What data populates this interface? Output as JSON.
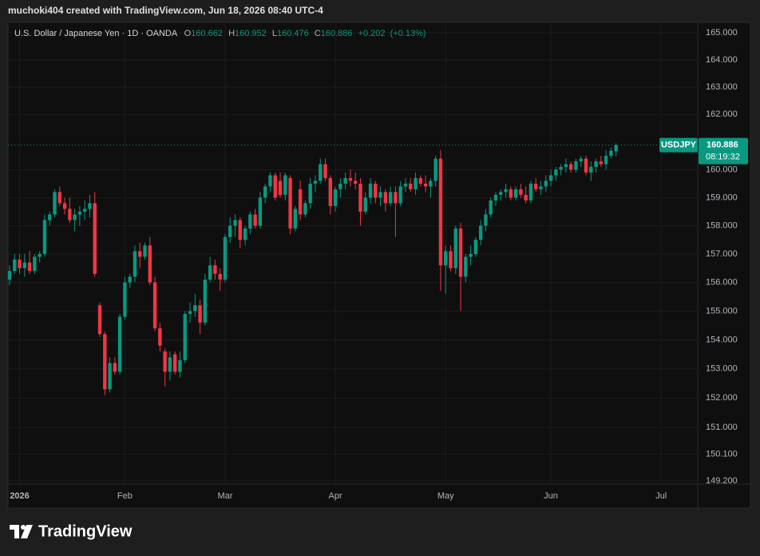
{
  "header": {
    "text": "muchoki404 created with TradingView.com, Jun 18, 2026 08:40 UTC-4"
  },
  "chart_data": {
    "type": "candlestick",
    "title": "U.S. Dollar / Japanese Yen · 1D · OANDA",
    "ohlc_labels": [
      "O",
      "H",
      "L",
      "C"
    ],
    "change": "+0.202",
    "change_percent": "(+0.13%)",
    "symbol": "USDJPY",
    "countdown": "08:19:32",
    "up_color": "#089981",
    "down_color": "#f23645",
    "log_scale": true,
    "grid": true,
    "xlim": [
      -0.32,
      137.3
    ],
    "xticks": [
      {
        "value": 2,
        "label": "2026"
      },
      {
        "value": 23,
        "label": "Feb"
      },
      {
        "value": 43,
        "label": "Mar"
      },
      {
        "value": 65,
        "label": "Apr"
      },
      {
        "value": 87,
        "label": "May"
      },
      {
        "value": 108,
        "label": "Jun"
      },
      {
        "value": 130,
        "label": "Jul"
      }
    ],
    "ylim": [
      149.09,
      165.385
    ],
    "yticks": [
      {
        "value": 165,
        "label": "165.000"
      },
      {
        "value": 164,
        "label": "164.000"
      },
      {
        "value": 163,
        "label": "163.000"
      },
      {
        "value": 162,
        "label": "162.000"
      },
      {
        "value": 160,
        "label": "160.000"
      },
      {
        "value": 159,
        "label": "159.000"
      },
      {
        "value": 158,
        "label": "158.000"
      },
      {
        "value": 157,
        "label": "157.000"
      },
      {
        "value": 156,
        "label": "156.000"
      },
      {
        "value": 155,
        "label": "155.000"
      },
      {
        "value": 154,
        "label": "154.000"
      },
      {
        "value": 153,
        "label": "153.000"
      },
      {
        "value": 152,
        "label": "152.000"
      },
      {
        "value": 151,
        "label": "151.000"
      },
      {
        "value": 150.1,
        "label": "150.100"
      },
      {
        "value": 149.2,
        "label": "149.200"
      }
    ],
    "open": [
      156.1,
      156.4,
      156.8,
      156.5,
      156.7,
      156.4,
      156.9,
      157.0,
      158.2,
      158.4,
      159.2,
      158.8,
      158.6,
      158.2,
      158.4,
      158.5,
      158.6,
      158.8,
      155.2,
      154.2,
      152.3,
      153.2,
      152.9,
      154.8,
      156.0,
      156.2,
      157.1,
      156.9,
      157.3,
      156.0,
      154.4,
      153.6,
      152.9,
      153.5,
      152.9,
      153.3,
      154.9,
      155.0,
      155.2,
      154.6,
      156.1,
      156.6,
      156.3,
      156.1,
      157.6,
      158.0,
      158.2,
      157.5,
      157.9,
      158.4,
      158.0,
      159.0,
      159.4,
      159.8,
      159.6,
      159.1,
      159.7,
      157.9,
      159.3,
      158.4,
      158.8,
      159.5,
      159.6,
      160.2,
      159.7,
      158.7,
      159.3,
      159.5,
      159.7,
      159.6,
      159.5,
      158.5,
      159.0,
      159.5,
      159.0,
      159.2,
      158.8,
      159.2,
      158.8,
      159.4,
      159.5,
      159.3,
      159.7,
      159.5,
      159.4,
      159.6,
      160.4,
      156.6,
      157.1,
      156.5,
      157.9,
      156.2,
      156.9,
      157.0,
      157.5,
      158.0,
      158.4,
      158.9,
      159.1,
      159.2,
      159.3,
      159.0,
      159.3,
      159.1,
      158.9,
      159.5,
      159.3,
      159.4,
      159.6,
      159.8,
      160.0,
      160.1,
      160.2,
      160.0,
      160.3,
      160.4,
      159.9,
      160.1,
      160.3,
      160.2,
      160.5,
      160.662
    ],
    "high": [
      156.6,
      157.0,
      157.0,
      157.0,
      157.1,
      157.0,
      157.1,
      158.4,
      158.5,
      159.3,
      159.4,
      159.0,
      159.0,
      158.6,
      158.7,
      158.9,
      159.1,
      159.2,
      155.3,
      154.3,
      153.4,
      153.4,
      154.9,
      156.2,
      156.3,
      157.3,
      157.4,
      157.4,
      157.6,
      156.2,
      154.6,
      153.7,
      153.6,
      153.6,
      153.6,
      155.0,
      155.3,
      155.6,
      155.4,
      156.3,
      156.9,
      156.8,
      156.5,
      157.7,
      158.3,
      158.4,
      158.3,
      158.0,
      158.5,
      158.6,
      159.2,
      159.5,
      159.9,
      159.9,
      159.9,
      159.9,
      159.8,
      158.7,
      159.6,
      158.9,
      159.7,
      159.8,
      160.4,
      160.4,
      159.8,
      159.4,
      159.7,
      159.9,
      160.0,
      159.9,
      159.7,
      159.2,
      159.7,
      159.6,
      159.4,
      159.3,
      159.4,
      159.4,
      159.6,
      159.7,
      159.7,
      159.9,
      159.8,
      159.8,
      159.7,
      160.5,
      160.7,
      157.3,
      157.3,
      158.0,
      158.1,
      157.0,
      157.3,
      157.6,
      158.2,
      158.6,
      159.0,
      159.2,
      159.3,
      159.5,
      159.4,
      159.4,
      159.5,
      159.4,
      159.6,
      159.7,
      159.6,
      159.8,
      160.0,
      160.1,
      160.2,
      160.4,
      160.3,
      160.4,
      160.5,
      160.5,
      160.3,
      160.4,
      160.5,
      160.7,
      160.8,
      160.952
    ],
    "low": [
      155.9,
      156.3,
      156.3,
      156.2,
      156.3,
      156.3,
      156.7,
      156.9,
      158.0,
      158.3,
      158.7,
      158.4,
      158.1,
      157.8,
      158.0,
      158.2,
      158.3,
      156.2,
      154.1,
      152.1,
      152.2,
      152.8,
      152.8,
      154.7,
      155.8,
      156.0,
      156.5,
      156.8,
      155.9,
      154.3,
      153.6,
      152.4,
      152.6,
      152.8,
      152.7,
      153.2,
      154.6,
      154.8,
      154.2,
      154.5,
      156.0,
      156.1,
      155.7,
      156.0,
      157.4,
      157.6,
      157.2,
      157.3,
      157.7,
      157.9,
      157.9,
      158.8,
      159.2,
      158.9,
      159.0,
      158.9,
      157.7,
      157.8,
      158.2,
      158.3,
      158.6,
      159.2,
      159.5,
      159.6,
      158.4,
      158.5,
      159.0,
      159.3,
      159.4,
      159.3,
      158.0,
      158.4,
      158.8,
      158.8,
      158.7,
      158.5,
      158.7,
      157.6,
      158.7,
      159.2,
      159.2,
      159.1,
      159.4,
      159.2,
      159.0,
      159.4,
      155.7,
      155.6,
      156.4,
      156.3,
      155.0,
      156.0,
      156.6,
      156.9,
      157.3,
      157.8,
      158.3,
      158.7,
      158.9,
      159.0,
      158.9,
      158.9,
      159.0,
      158.8,
      158.8,
      159.2,
      159.1,
      159.2,
      159.4,
      159.6,
      159.8,
      159.9,
      159.9,
      159.9,
      160.1,
      159.8,
      159.6,
      159.9,
      160.1,
      160.0,
      160.4,
      160.476
    ],
    "close": [
      156.4,
      156.8,
      156.5,
      156.7,
      156.4,
      156.9,
      157.0,
      158.2,
      158.4,
      159.2,
      158.8,
      158.6,
      158.2,
      158.4,
      158.5,
      158.6,
      158.8,
      156.3,
      154.2,
      152.3,
      153.2,
      152.9,
      154.8,
      156.0,
      156.2,
      157.1,
      156.9,
      157.3,
      156.0,
      154.4,
      153.8,
      152.9,
      153.4,
      152.9,
      153.3,
      154.9,
      155.0,
      155.2,
      154.6,
      156.1,
      156.6,
      156.3,
      156.1,
      157.6,
      158.0,
      158.2,
      157.5,
      157.9,
      158.4,
      158.0,
      159.0,
      159.4,
      159.8,
      159.0,
      159.1,
      159.8,
      157.9,
      158.6,
      158.4,
      158.8,
      159.5,
      159.6,
      160.2,
      159.7,
      158.7,
      159.3,
      159.5,
      159.7,
      159.6,
      159.5,
      158.5,
      159.0,
      159.5,
      159.0,
      159.2,
      158.8,
      159.2,
      158.8,
      159.4,
      159.5,
      159.3,
      159.7,
      159.5,
      159.4,
      159.6,
      160.4,
      156.6,
      157.1,
      156.5,
      157.9,
      156.2,
      156.9,
      157.0,
      157.5,
      158.0,
      158.4,
      158.9,
      159.1,
      159.2,
      159.3,
      159.0,
      159.3,
      159.1,
      158.9,
      159.5,
      159.3,
      159.4,
      159.6,
      159.8,
      160.0,
      160.1,
      160.2,
      160.0,
      160.3,
      160.4,
      159.9,
      160.1,
      160.3,
      160.2,
      160.5,
      160.684,
      160.886
    ]
  },
  "footer": {
    "logo": "TradingView"
  }
}
